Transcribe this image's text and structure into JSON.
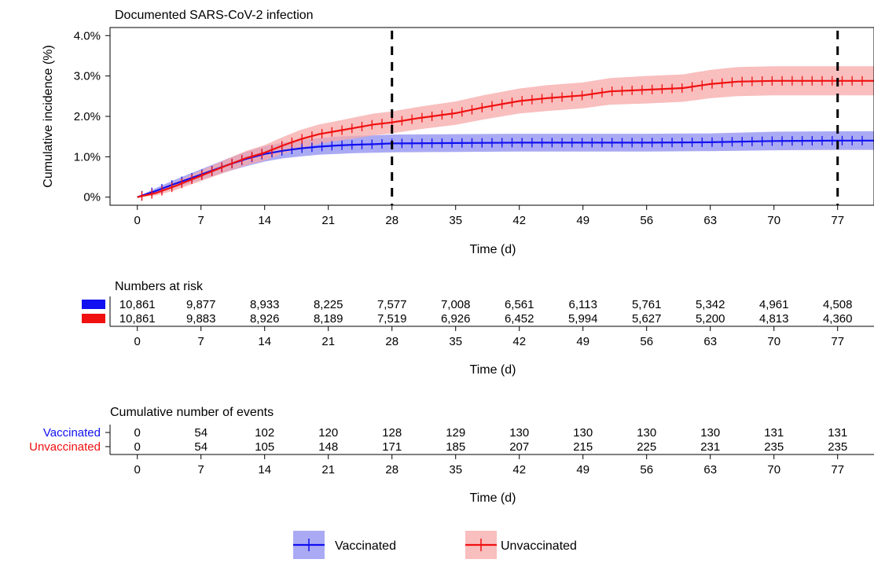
{
  "colors": {
    "vaccinated": "#1010f0",
    "vaccinated_band": "#8e8ef0",
    "unvaccinated": "#f01010",
    "unvaccinated_band": "#f7a8a8",
    "reference_line": "#000000"
  },
  "chart_data": {
    "type": "line",
    "title": "Documented SARS-CoV-2 infection",
    "xlabel": "Time (d)",
    "ylabel": "Cumulative incidence (%)",
    "xlim": [
      -3,
      81
    ],
    "ylim": [
      -0.2,
      4.2
    ],
    "x_ticks": [
      0,
      7,
      14,
      21,
      28,
      35,
      42,
      49,
      56,
      63,
      70,
      77
    ],
    "y_ticks": [
      {
        "value": 0,
        "label": "0%"
      },
      {
        "value": 1,
        "label": "1.0%"
      },
      {
        "value": 2,
        "label": "2.0%"
      },
      {
        "value": 3,
        "label": "3.0%"
      },
      {
        "value": 4,
        "label": "4.0%"
      }
    ],
    "reference_lines": [
      28,
      77
    ],
    "series": [
      {
        "name": "Vaccinated",
        "color_key": "vaccinated",
        "x": [
          0,
          2,
          4,
          6,
          8,
          10,
          12,
          14,
          16,
          18,
          20,
          22,
          24,
          26,
          28,
          35,
          42,
          49,
          56,
          63,
          70,
          77,
          81
        ],
        "y": [
          0,
          0.15,
          0.32,
          0.48,
          0.64,
          0.8,
          0.95,
          1.07,
          1.15,
          1.21,
          1.25,
          1.28,
          1.3,
          1.31,
          1.33,
          1.34,
          1.35,
          1.35,
          1.35,
          1.36,
          1.39,
          1.4,
          1.4
        ],
        "lower": [
          0,
          0.08,
          0.22,
          0.36,
          0.5,
          0.64,
          0.77,
          0.88,
          0.96,
          1.01,
          1.05,
          1.07,
          1.09,
          1.1,
          1.11,
          1.12,
          1.13,
          1.13,
          1.13,
          1.14,
          1.16,
          1.17,
          1.17
        ],
        "upper": [
          0,
          0.22,
          0.42,
          0.6,
          0.78,
          0.96,
          1.13,
          1.26,
          1.35,
          1.42,
          1.46,
          1.5,
          1.52,
          1.53,
          1.55,
          1.56,
          1.57,
          1.57,
          1.57,
          1.58,
          1.62,
          1.63,
          1.63
        ]
      },
      {
        "name": "Unvaccinated",
        "color_key": "unvaccinated",
        "x": [
          0,
          2,
          4,
          6,
          8,
          10,
          12,
          14,
          16,
          18,
          20,
          22,
          24,
          26,
          28,
          31,
          35,
          38,
          42,
          45,
          49,
          52,
          56,
          60,
          63,
          66,
          70,
          74,
          77,
          81
        ],
        "y": [
          0,
          0.1,
          0.26,
          0.44,
          0.62,
          0.8,
          0.97,
          1.1,
          1.28,
          1.44,
          1.56,
          1.64,
          1.72,
          1.8,
          1.85,
          1.96,
          2.08,
          2.22,
          2.38,
          2.45,
          2.52,
          2.62,
          2.66,
          2.7,
          2.8,
          2.86,
          2.88,
          2.88,
          2.88,
          2.88
        ],
        "lower": [
          0,
          0.04,
          0.16,
          0.32,
          0.48,
          0.64,
          0.79,
          0.91,
          1.07,
          1.21,
          1.32,
          1.39,
          1.46,
          1.53,
          1.58,
          1.68,
          1.79,
          1.92,
          2.07,
          2.13,
          2.2,
          2.29,
          2.32,
          2.36,
          2.45,
          2.5,
          2.52,
          2.52,
          2.52,
          2.52
        ],
        "upper": [
          0,
          0.16,
          0.36,
          0.56,
          0.76,
          0.96,
          1.15,
          1.29,
          1.49,
          1.67,
          1.8,
          1.89,
          1.98,
          2.07,
          2.12,
          2.24,
          2.37,
          2.52,
          2.69,
          2.77,
          2.84,
          2.95,
          3.0,
          3.04,
          3.15,
          3.22,
          3.24,
          3.24,
          3.24,
          3.24
        ]
      }
    ]
  },
  "risk_table": {
    "title": "Numbers at risk",
    "xlabel": "Time (d)",
    "rows": [
      {
        "color_key": "vaccinated",
        "values": [
          "10,861",
          "9,877",
          "8,933",
          "8,225",
          "7,577",
          "7,008",
          "6,561",
          "6,113",
          "5,761",
          "5,342",
          "4,961",
          "4,508"
        ]
      },
      {
        "color_key": "unvaccinated",
        "values": [
          "10,861",
          "9,883",
          "8,926",
          "8,189",
          "7,519",
          "6,926",
          "6,452",
          "5,994",
          "5,627",
          "5,200",
          "4,813",
          "4,360"
        ]
      }
    ]
  },
  "events_table": {
    "title": "Cumulative number of events",
    "xlabel": "Time (d)",
    "rows": [
      {
        "label": "Vaccinated",
        "color_key": "vaccinated",
        "values": [
          "0",
          "54",
          "102",
          "120",
          "128",
          "129",
          "130",
          "130",
          "130",
          "130",
          "131",
          "131"
        ]
      },
      {
        "label": "Unvaccinated",
        "color_key": "unvaccinated",
        "values": [
          "0",
          "54",
          "105",
          "148",
          "171",
          "185",
          "207",
          "215",
          "225",
          "231",
          "235",
          "235"
        ]
      }
    ]
  },
  "legend": {
    "items": [
      {
        "label": "Vaccinated",
        "color_key": "vaccinated"
      },
      {
        "label": "Unvaccinated",
        "color_key": "unvaccinated"
      }
    ]
  }
}
